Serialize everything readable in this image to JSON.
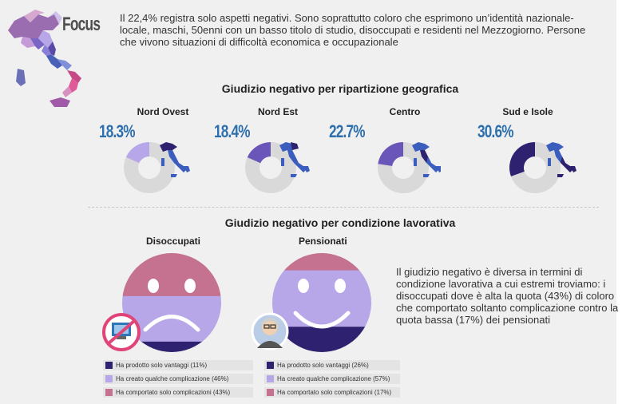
{
  "header": {
    "title": "Focus",
    "intro": "Il 22,4% registra solo aspetti negativi. Sono soprattutto coloro che esprimono un’identità nazionale-locale, maschi, 50enni con un basso titolo di studio, disoccupati e residenti nel Mezzogiorno. Persone che vivono situazioni di difficoltà economica e occupazionale"
  },
  "geo_section": {
    "title": "Giudizio negativo per ripartizione geografica"
  },
  "work_section": {
    "title": "Giudizio negativo per condizione lavorativa",
    "description": "Il giudizio negativo è diversa in termini di condizione lavorativa a cui estremi troviamo: i disoccupati dove è alta la quota (43%) di coloro che comportato soltanto complicazione contro la quota bassa (17%) dei pensionati"
  },
  "regions": [
    {
      "name": "Nord Ovest",
      "pct_label": "18.3%"
    },
    {
      "name": "Nord Est",
      "pct_label": "18.4%"
    },
    {
      "name": "Centro",
      "pct_label": "22.7%"
    },
    {
      "name": "Sud e Isole",
      "pct_label": "30.6%"
    }
  ],
  "groups": [
    {
      "name": "Disoccupati",
      "legend": [
        {
          "label": "Ha prodotto solo vantaggi (11%)",
          "color": "#2e2170"
        },
        {
          "label": "Ha creato qualche complicazione (46%)",
          "color": "#b7a6e8"
        },
        {
          "label": "Ha comportato solo complicazioni (43%)",
          "color": "#c4728f"
        }
      ]
    },
    {
      "name": "Pensionati",
      "legend": [
        {
          "label": "Ha prodotto solo vantaggi (26%)",
          "color": "#2e2170"
        },
        {
          "label": "Ha creato qualche complicazione (57%)",
          "color": "#b7a6e8"
        },
        {
          "label": "Ha comportato solo complicazioni (17%)",
          "color": "#c4728f"
        }
      ]
    }
  ],
  "chart_data": [
    {
      "type": "pie",
      "title": "Giudizio negativo per ripartizione geografica",
      "categories": [
        "Nord Ovest",
        "Nord Est",
        "Centro",
        "Sud e Isole"
      ],
      "values": [
        18.3,
        18.4,
        22.7,
        30.6
      ],
      "colors": [
        "#b7a6e8",
        "#6a55b8",
        "#6a55b8",
        "#2e2170"
      ],
      "remainder_color": "#d9d9d9"
    },
    {
      "type": "bar",
      "title": "Giudizio negativo per condizione lavorativa",
      "categories": [
        "Disoccupati",
        "Pensionati"
      ],
      "series": [
        {
          "name": "Ha prodotto solo vantaggi",
          "values": [
            11,
            26
          ],
          "color": "#2e2170"
        },
        {
          "name": "Ha creato qualche complicazione",
          "values": [
            46,
            57
          ],
          "color": "#b7a6e8"
        },
        {
          "name": "Ha comportato solo complicazioni",
          "values": [
            43,
            17
          ],
          "color": "#c4728f"
        }
      ],
      "stacked": true
    }
  ],
  "icons": {
    "map": "italy-map-icon",
    "unemployed": "no-computer-icon",
    "retired": "elderly-person-icon"
  }
}
